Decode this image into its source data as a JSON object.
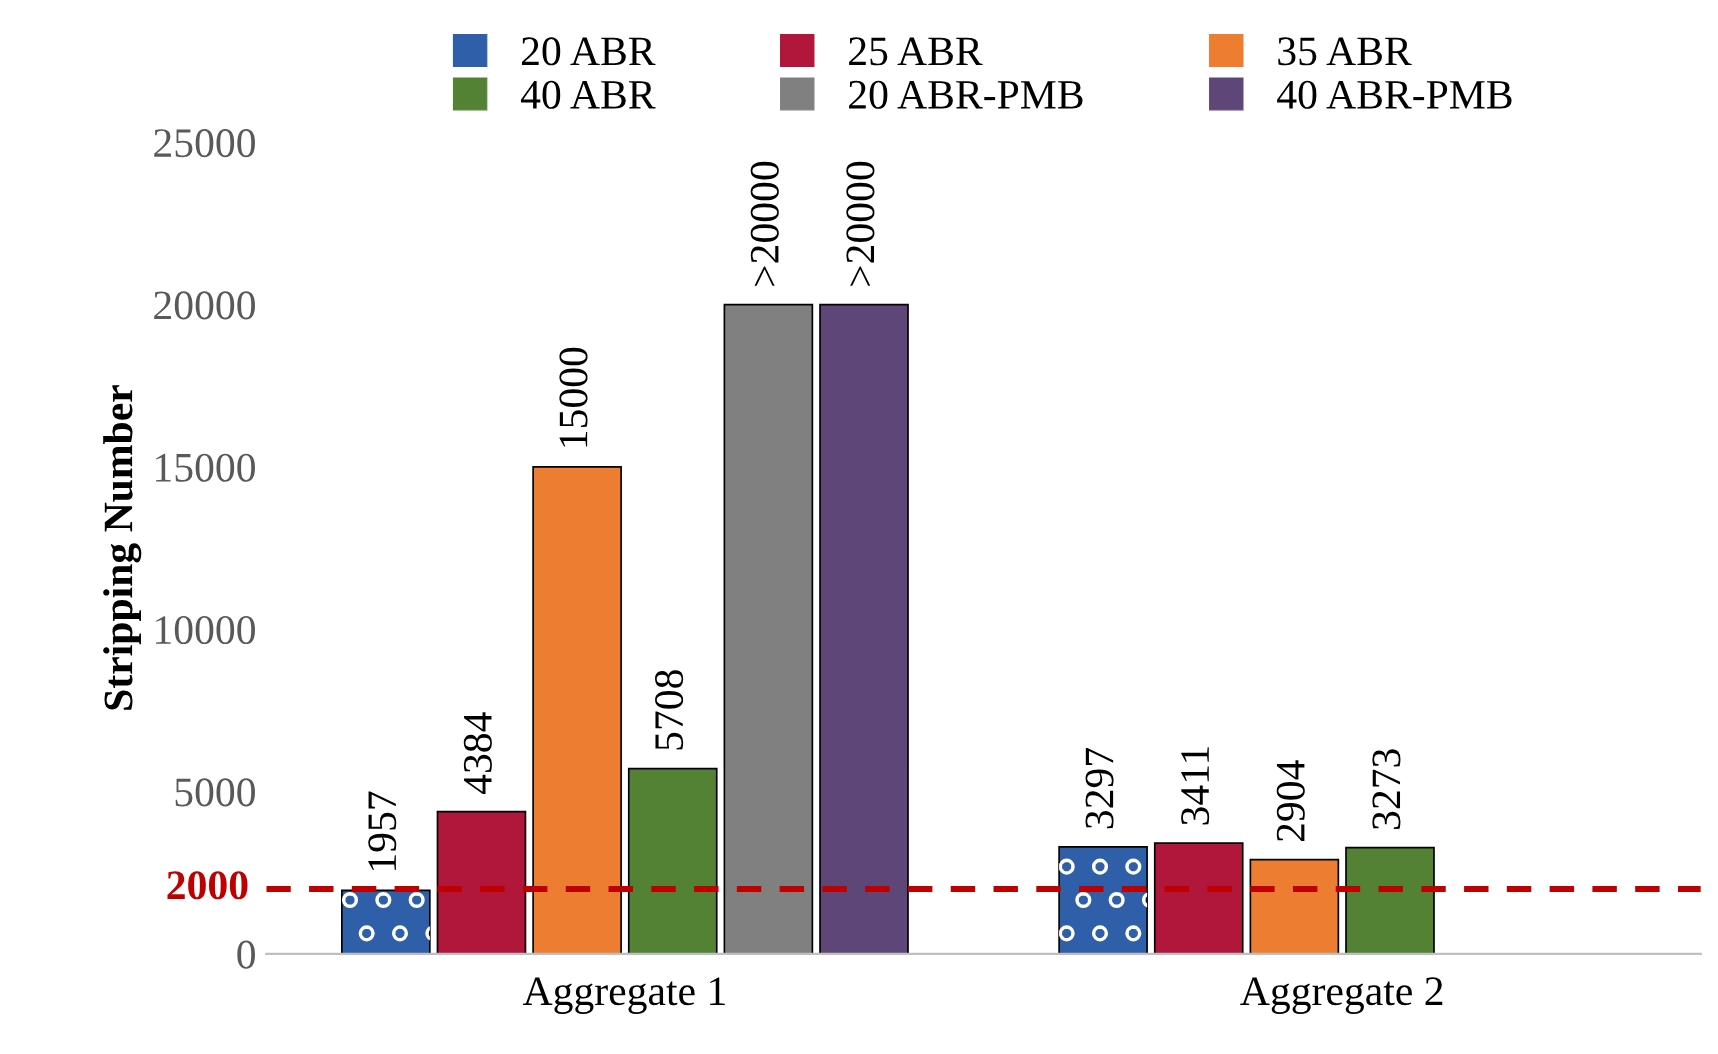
{
  "chart_data": {
    "type": "bar",
    "ylabel": "Stripping Number",
    "categories": [
      "Aggregate 1",
      "Aggregate 2"
    ],
    "series": [
      {
        "name": "20 ABR",
        "color": "#2e5fa8",
        "values": [
          1957,
          3297
        ],
        "value_labels": [
          "1957",
          "3297"
        ]
      },
      {
        "name": "25 ABR",
        "color": "#b0173a",
        "values": [
          4384,
          3411
        ],
        "value_labels": [
          "4384",
          "3411"
        ]
      },
      {
        "name": "35 ABR",
        "color": "#ed7d31",
        "values": [
          15000,
          2904
        ],
        "value_labels": [
          "15000",
          "2904"
        ]
      },
      {
        "name": "40 ABR",
        "color": "#548235",
        "values": [
          5708,
          3273
        ],
        "value_labels": [
          "5708",
          "3273"
        ]
      },
      {
        "name": "20 ABR-PMB",
        "color": "#808080",
        "values": [
          20000,
          null
        ],
        "value_labels": [
          ">20000",
          null
        ]
      },
      {
        "name": "40 ABR-PMB",
        "color": "#5f4679",
        "values": [
          20000,
          null
        ],
        "value_labels": [
          ">20000",
          null
        ]
      }
    ],
    "ylim": [
      0,
      25000
    ],
    "yticks": [
      0,
      5000,
      10000,
      15000,
      20000,
      25000
    ],
    "ref_lines": [
      {
        "axis": "y",
        "value": 2000,
        "label": "2000",
        "color": "#c00000",
        "line_style": "dashed"
      }
    ],
    "legend": "top",
    "grid": false
  }
}
